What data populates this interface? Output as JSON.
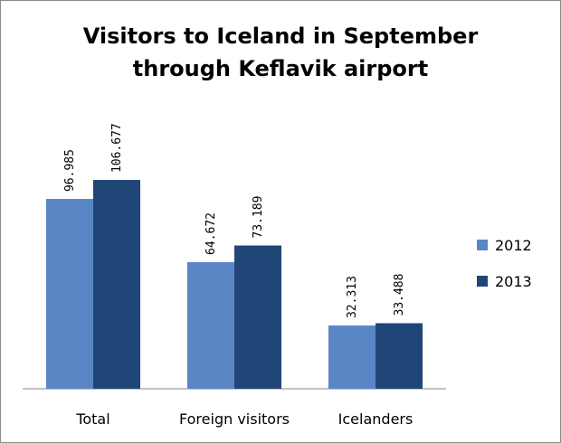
{
  "chart_data": {
    "type": "bar",
    "title_line1": "Visitors to Iceland in September",
    "title_line2": "through Keflavik airport",
    "categories": [
      "Total",
      "Foreign visitors",
      "Icelanders"
    ],
    "series": [
      {
        "name": "2012",
        "color": "#5b86c5",
        "values": [
          96985,
          64672,
          32313
        ],
        "labels": [
          "96.985",
          "64.672",
          "32.313"
        ]
      },
      {
        "name": "2013",
        "color": "#1f4677",
        "values": [
          106677,
          73189,
          33488
        ],
        "labels": [
          "106.677",
          "73.189",
          "33.488"
        ]
      }
    ],
    "ylim": [
      0,
      147800
    ],
    "legend": "right",
    "grid": false,
    "axis_color": "#868686"
  }
}
